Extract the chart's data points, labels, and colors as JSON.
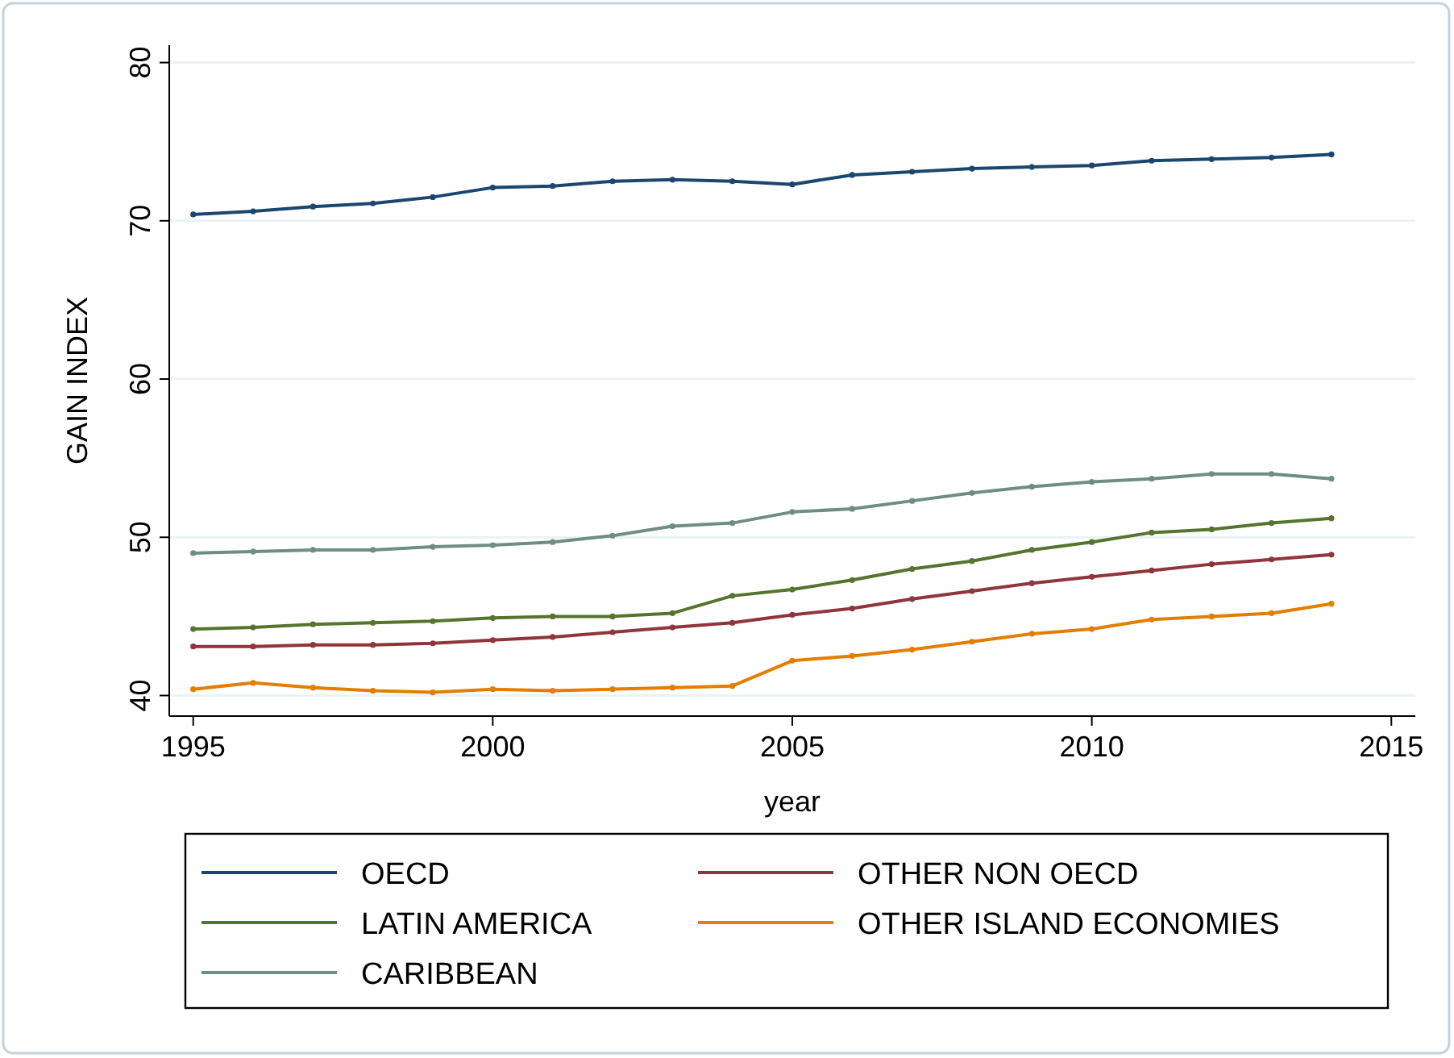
{
  "chart_data": {
    "type": "line",
    "xlabel": "year",
    "ylabel": "GAIN INDEX",
    "x": [
      1995,
      1996,
      1997,
      1998,
      1999,
      2000,
      2001,
      2002,
      2003,
      2004,
      2005,
      2006,
      2007,
      2008,
      2009,
      2010,
      2011,
      2012,
      2013,
      2014
    ],
    "series": [
      {
        "name": "OECD",
        "color": "#1a476f",
        "values": [
          70.4,
          70.6,
          70.9,
          71.1,
          71.5,
          72.1,
          72.2,
          72.5,
          72.6,
          72.5,
          72.3,
          72.9,
          73.1,
          73.3,
          73.4,
          73.5,
          73.8,
          73.9,
          74.0,
          74.2
        ]
      },
      {
        "name": "OTHER NON OECD",
        "color": "#90353b",
        "values": [
          43.1,
          43.1,
          43.2,
          43.2,
          43.3,
          43.5,
          43.7,
          44.0,
          44.3,
          44.6,
          45.1,
          45.5,
          46.1,
          46.6,
          47.1,
          47.5,
          47.9,
          48.3,
          48.6,
          48.9
        ]
      },
      {
        "name": "LATIN AMERICA",
        "color": "#55752f",
        "values": [
          44.2,
          44.3,
          44.5,
          44.6,
          44.7,
          44.9,
          45.0,
          45.0,
          45.2,
          46.3,
          46.7,
          47.3,
          48.0,
          48.5,
          49.2,
          49.7,
          50.3,
          50.5,
          50.9,
          51.2
        ]
      },
      {
        "name": "OTHER ISLAND ECONOMIES",
        "color": "#e37e00",
        "values": [
          40.4,
          40.8,
          40.5,
          40.3,
          40.2,
          40.4,
          40.3,
          40.4,
          40.5,
          40.6,
          42.2,
          42.5,
          42.9,
          43.4,
          43.9,
          44.2,
          44.8,
          45.0,
          45.2,
          45.8
        ]
      },
      {
        "name": "CARIBBEAN",
        "color": "#6e8e84",
        "values": [
          49.0,
          49.1,
          49.2,
          49.2,
          49.4,
          49.5,
          49.7,
          50.1,
          50.7,
          50.9,
          51.6,
          51.8,
          52.3,
          52.8,
          53.2,
          53.5,
          53.7,
          54.0,
          54.0,
          53.7
        ]
      }
    ],
    "xlim": [
      1994.6,
      2015.4
    ],
    "xticks": [
      1995,
      2000,
      2005,
      2010,
      2015
    ],
    "ylim": [
      38.7,
      81.1
    ],
    "yticks": [
      40,
      50,
      60,
      70,
      80
    ],
    "grid": "y",
    "legend": "bottom",
    "marker": "circle",
    "line_style": "solid"
  }
}
